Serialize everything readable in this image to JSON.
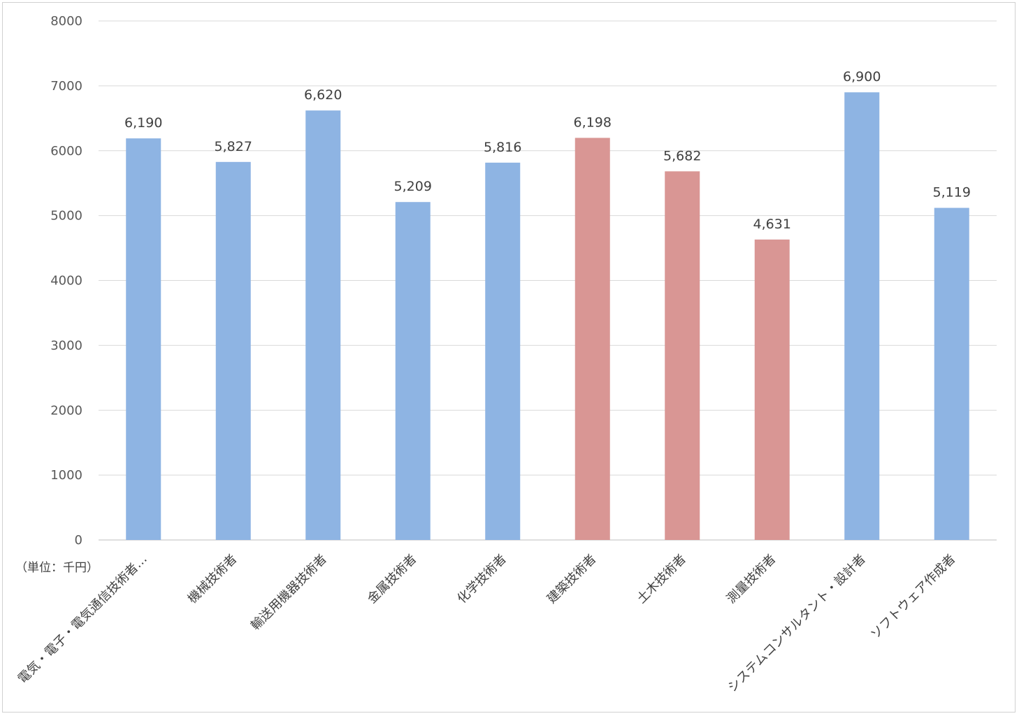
{
  "chart_data": {
    "type": "bar",
    "title": "",
    "xlabel": "",
    "ylabel": "",
    "unit_note": "（単位：千円）",
    "ylim": [
      0,
      8000
    ],
    "yticks": [
      0,
      1000,
      2000,
      3000,
      4000,
      5000,
      6000,
      7000,
      8000
    ],
    "grid": true,
    "legend": "none",
    "categories": [
      "電気・電子・電気通信技術者…",
      "機械技術者",
      "輸送用機器技術者",
      "金属技術者",
      "化学技術者",
      "建築技術者",
      "土木技術者",
      "測量技術者",
      "システムコンサルタント・設計者",
      "ソフトウェア作成者"
    ],
    "values": [
      6190,
      5827,
      6620,
      5209,
      5816,
      6198,
      5682,
      4631,
      6900,
      5119
    ],
    "data_labels": [
      "6,190",
      "5,827",
      "6,620",
      "5,209",
      "5,816",
      "6,198",
      "5,682",
      "4,631",
      "6,900",
      "5,119"
    ],
    "bar_colors": [
      "#8eb4e3",
      "#8eb4e3",
      "#8eb4e3",
      "#8eb4e3",
      "#8eb4e3",
      "#d99694",
      "#d99694",
      "#d99694",
      "#8eb4e3",
      "#8eb4e3"
    ],
    "grid_color": "#d9d9d9"
  }
}
